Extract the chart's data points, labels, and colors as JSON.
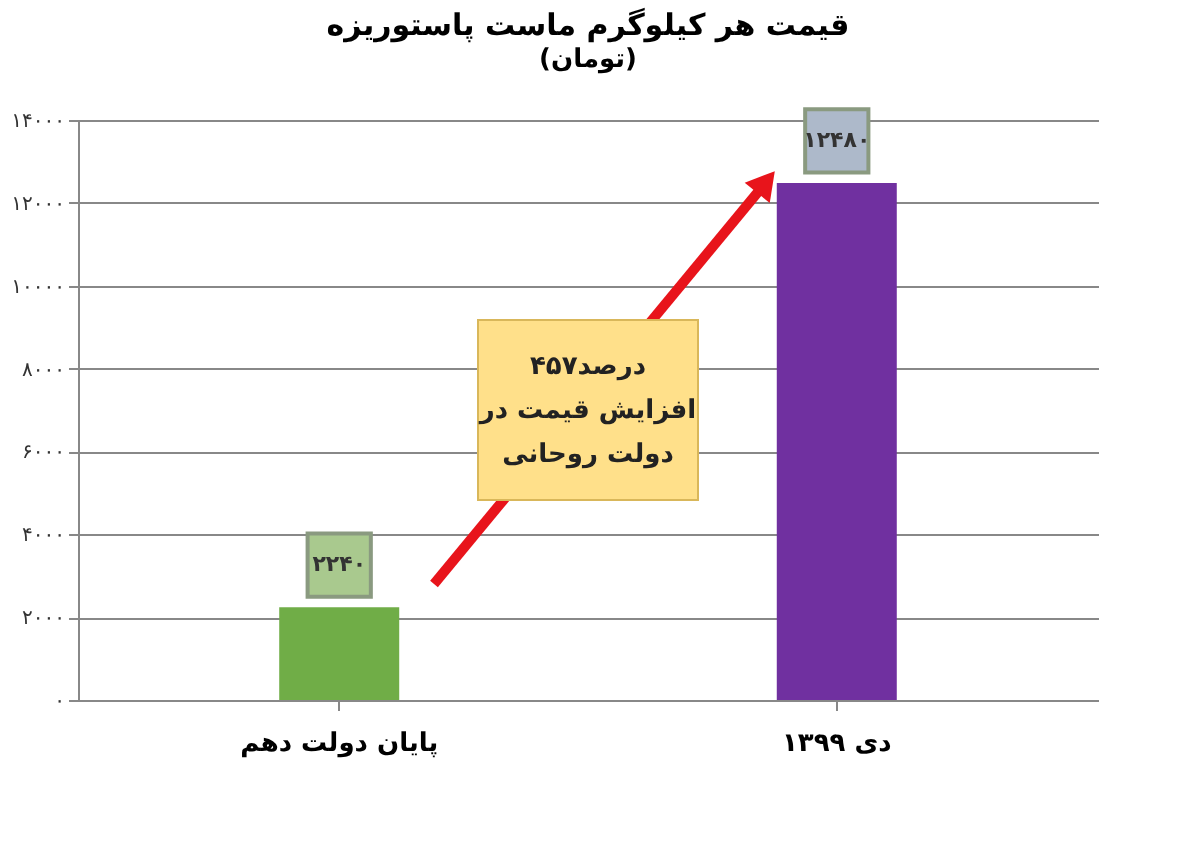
{
  "chart_data": {
    "type": "bar",
    "title": "قیمت هر کیلوگرم ماست پاستوریزه",
    "subtitle": "(تومان)",
    "categories": [
      "پایان دولت دهم",
      "دی ۱۳۹۹"
    ],
    "values": [
      2240,
      12480
    ],
    "colors": [
      "#70ad47",
      "#7030a0"
    ],
    "value_labels": [
      "۲۲۴۰",
      "۱۲۴۸۰"
    ],
    "ylim": [
      0,
      14000
    ],
    "yticks": [
      {
        "value": 0,
        "label": "۰"
      },
      {
        "value": 2000,
        "label": "۲۰۰۰"
      },
      {
        "value": 4000,
        "label": "۴۰۰۰"
      },
      {
        "value": 6000,
        "label": "۶۰۰۰"
      },
      {
        "value": 8000,
        "label": "۸۰۰۰"
      },
      {
        "value": 10000,
        "label": "۱۰۰۰۰"
      },
      {
        "value": 12000,
        "label": "۱۲۰۰۰"
      },
      {
        "value": 14000,
        "label": "۱۴۰۰۰"
      }
    ],
    "grid": "y",
    "annotations": [
      "۴۵۷درصد\nافزایش قیمت در\nدولت روحانی"
    ]
  }
}
